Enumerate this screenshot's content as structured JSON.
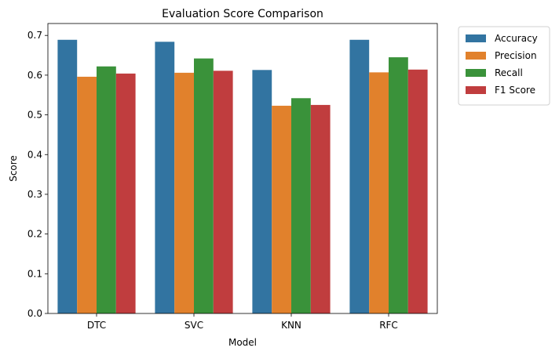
{
  "chart_data": {
    "type": "bar",
    "title": "Evaluation Score Comparison",
    "xlabel": "Model",
    "ylabel": "Score",
    "categories": [
      "DTC",
      "SVC",
      "KNN",
      "RFC"
    ],
    "ylim": [
      0,
      0.73
    ],
    "yticks": [
      "0.0",
      "0.1",
      "0.2",
      "0.3",
      "0.4",
      "0.5",
      "0.6",
      "0.7"
    ],
    "legend_position": "outside top-right",
    "grid": false,
    "series": [
      {
        "name": "Accuracy",
        "color": "#3274a1",
        "values": [
          0.689,
          0.684,
          0.613,
          0.689
        ]
      },
      {
        "name": "Precision",
        "color": "#e1812c",
        "values": [
          0.596,
          0.606,
          0.523,
          0.607
        ]
      },
      {
        "name": "Recall",
        "color": "#3a923a",
        "values": [
          0.622,
          0.642,
          0.542,
          0.645
        ]
      },
      {
        "name": "F1 Score",
        "color": "#c03d3e",
        "values": [
          0.604,
          0.611,
          0.525,
          0.614
        ]
      }
    ]
  }
}
